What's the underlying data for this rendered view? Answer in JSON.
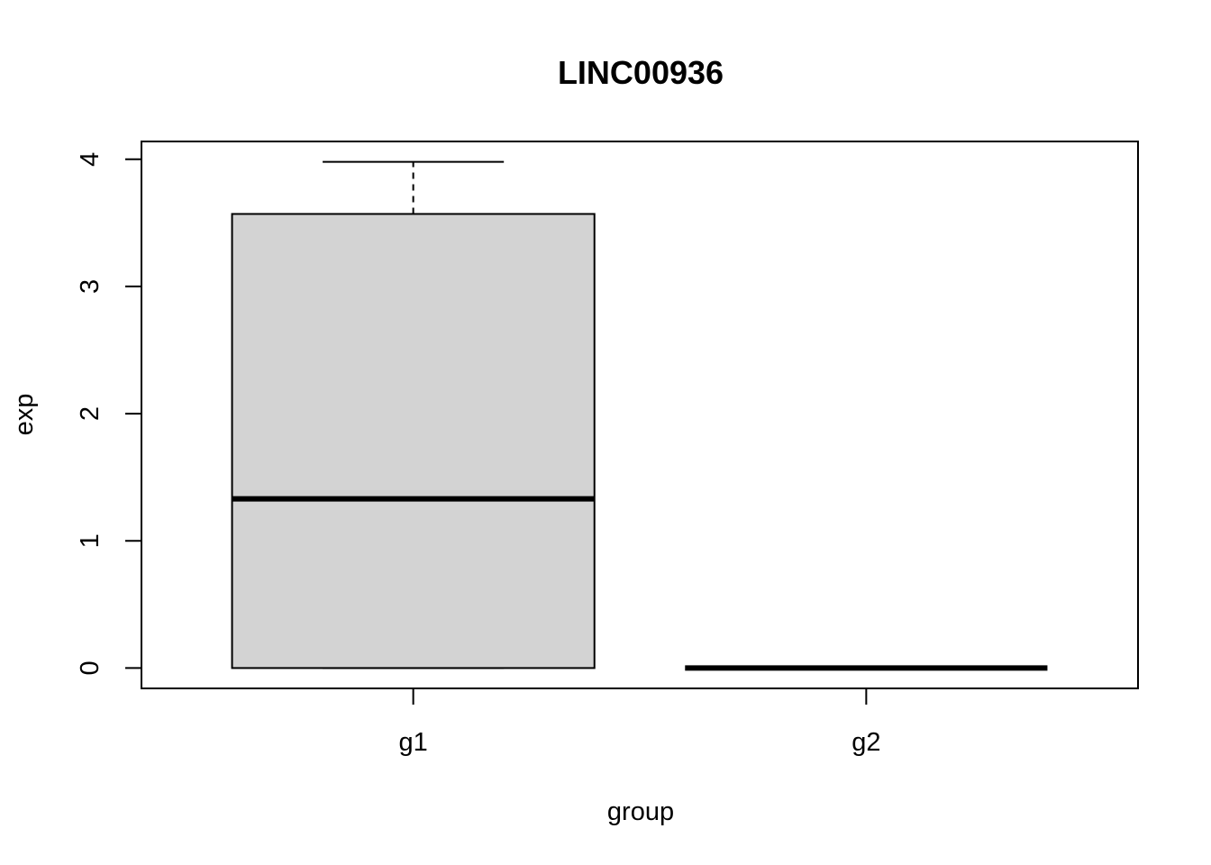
{
  "chart_data": {
    "type": "boxplot",
    "title": "LINC00936",
    "xlabel": "group",
    "ylabel": "exp",
    "ylim": [
      -0.16,
      4.14
    ],
    "yticks": [
      0,
      1,
      2,
      3,
      4
    ],
    "categories": [
      "g1",
      "g2"
    ],
    "boxes": [
      {
        "category": "g1",
        "whisker_low": 0,
        "q1": 0,
        "median": 1.33,
        "q3": 3.57,
        "whisker_high": 3.98
      },
      {
        "category": "g2",
        "whisker_low": 0,
        "q1": 0,
        "median": 0,
        "q3": 0,
        "whisker_high": 0
      }
    ],
    "box_fill": "#d3d3d3",
    "grid": false,
    "legend": "none"
  }
}
